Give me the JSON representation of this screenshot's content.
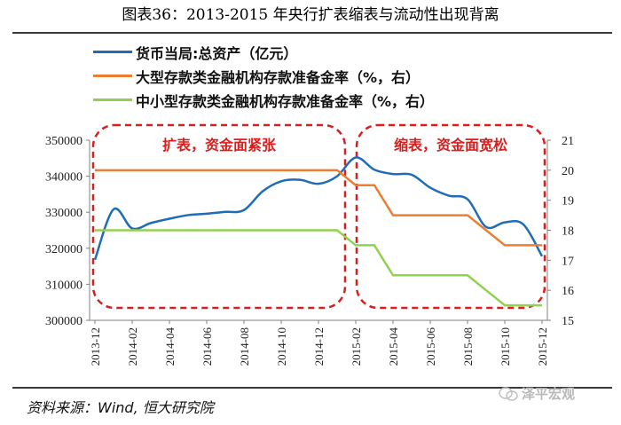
{
  "title": "图表36：2013-2015 年央行扩表缩表与流动性出现背离",
  "source": "资料来源：Wind, 恒大研究院",
  "watermark": "泽平宏观",
  "chart_data": {
    "type": "line",
    "x": [
      "2013-12",
      "2014-01",
      "2014-02",
      "2014-03",
      "2014-04",
      "2014-05",
      "2014-06",
      "2014-07",
      "2014-08",
      "2014-09",
      "2014-10",
      "2014-11",
      "2014-12",
      "2015-01",
      "2015-02",
      "2015-03",
      "2015-04",
      "2015-05",
      "2015-06",
      "2015-07",
      "2015-08",
      "2015-09",
      "2015-10",
      "2015-11",
      "2015-12"
    ],
    "xticks": [
      "2013-12",
      "2014-02",
      "2014-04",
      "2014-06",
      "2014-08",
      "2014-10",
      "2014-12",
      "2015-02",
      "2015-04",
      "2015-06",
      "2015-08",
      "2015-10",
      "2015-12"
    ],
    "series": [
      {
        "name": "货币当局:总资产（亿元）",
        "axis": "left",
        "color": "#1f6db5",
        "values": [
          316800,
          330800,
          325500,
          327000,
          328200,
          329200,
          329600,
          330100,
          330600,
          335800,
          338600,
          339000,
          337900,
          340000,
          345200,
          341800,
          340600,
          340400,
          336800,
          334600,
          333600,
          325900,
          327200,
          326600,
          317800
        ]
      },
      {
        "name": "大型存款类金融机构存款准备金率（%，右）",
        "axis": "right",
        "color": "#ed7d31",
        "values": [
          20,
          20,
          20,
          20,
          20,
          20,
          20,
          20,
          20,
          20,
          20,
          20,
          20,
          20,
          19.5,
          19.5,
          18.5,
          18.5,
          18.5,
          18.5,
          18.5,
          18,
          17.5,
          17.5,
          17.5
        ]
      },
      {
        "name": "中小型存款类金融机构存款准备金率（%，右）",
        "axis": "right",
        "color": "#92d050",
        "values": [
          18,
          18,
          18,
          18,
          18,
          18,
          18,
          18,
          18,
          18,
          18,
          18,
          18,
          18,
          17.5,
          17.5,
          16.5,
          16.5,
          16.5,
          16.5,
          16.5,
          16,
          15.5,
          15.5,
          15.5
        ]
      }
    ],
    "y_left": {
      "range": [
        300000,
        350000
      ],
      "ticks": [
        300000,
        310000,
        320000,
        330000,
        340000,
        350000
      ]
    },
    "y_right": {
      "range": [
        15,
        21
      ],
      "ticks": [
        15,
        16,
        17,
        18,
        19,
        20,
        21
      ]
    },
    "annotations": [
      {
        "text": "扩表，资金面紧张",
        "from": "2013-12",
        "to": "2014-12"
      },
      {
        "text": "缩表，资金面宽松",
        "from": "2015-02",
        "to": "2015-12"
      }
    ]
  }
}
